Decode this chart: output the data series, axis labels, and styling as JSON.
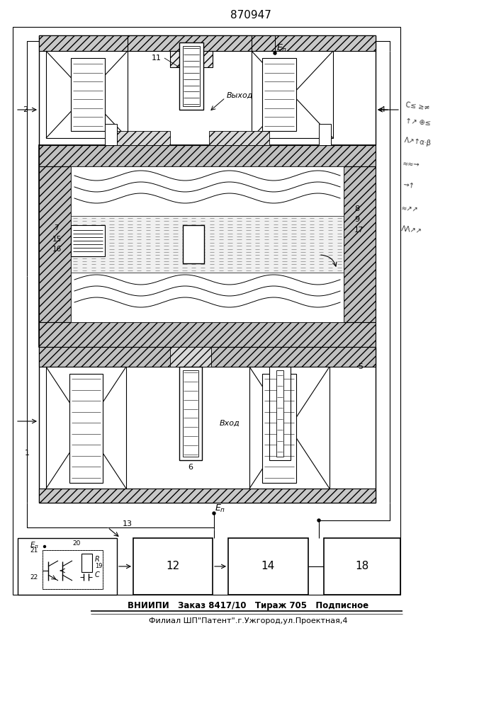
{
  "title": "870947",
  "footer_line1": "ВНИИПИ   Заказ 8417/10   Тираж 705   Подписное",
  "footer_line2": "Филиал ШП\"Патент\".г.Ужгород,ул.Проектная,4",
  "bg_color": "#ffffff",
  "lc": "#000000"
}
